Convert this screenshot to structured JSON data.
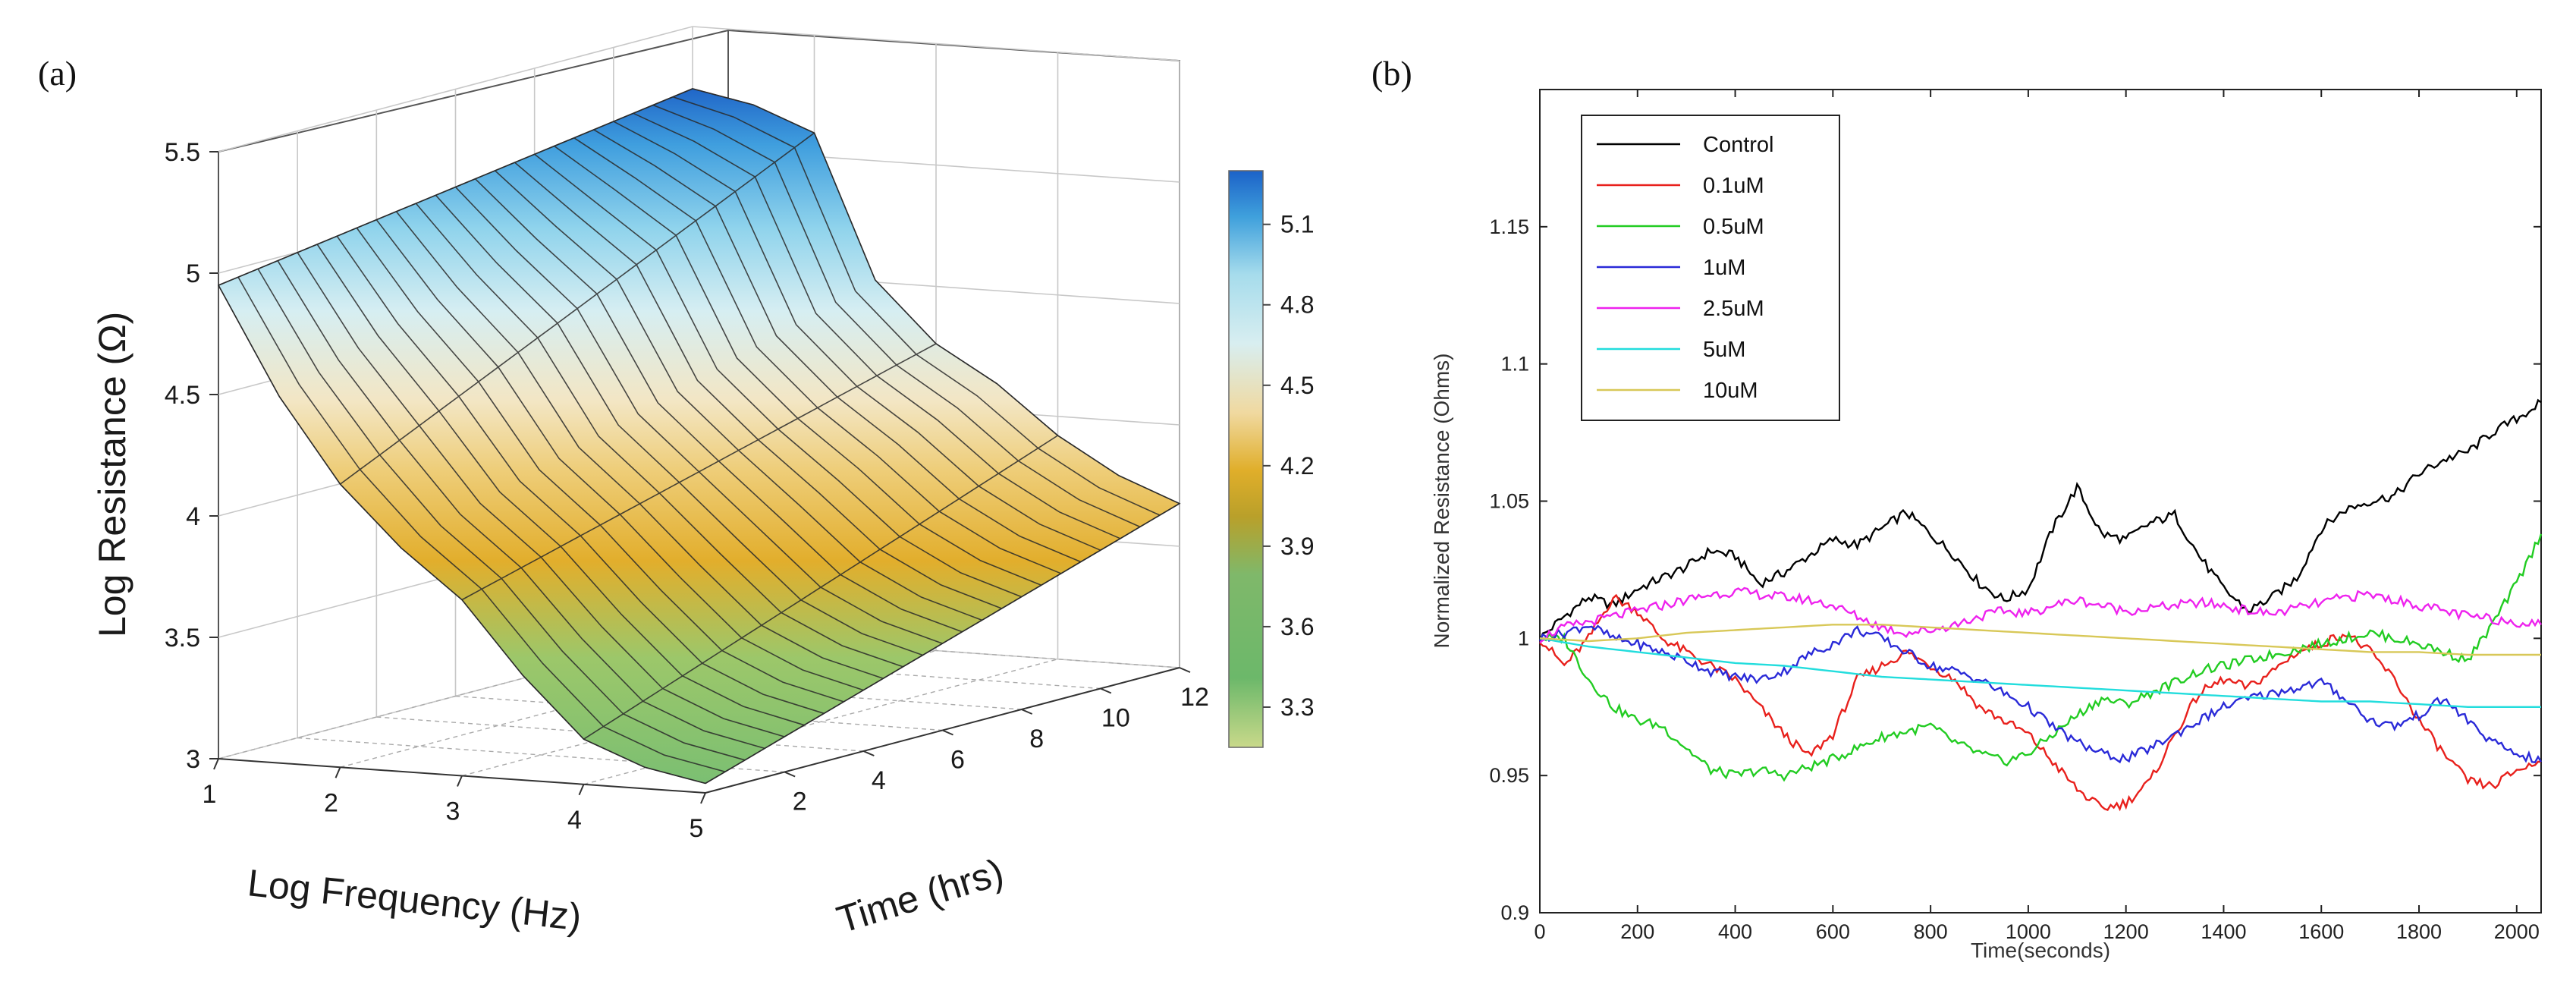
{
  "figure": {
    "panel_a_label": "(a)",
    "panel_b_label": "(b)"
  },
  "chart_data": [
    {
      "type": "surface3d",
      "panel": "(a)",
      "title": "",
      "zlabel": "Log Resistance (Ω)",
      "xlabel": "Log Frequency (Hz)",
      "ylabel": "Time (hrs)",
      "x_ticks": [
        "1",
        "2",
        "3",
        "4",
        "5"
      ],
      "y_ticks": [
        "2",
        "4",
        "6",
        "8",
        "10",
        "12"
      ],
      "z_ticks": [
        "3",
        "3.5",
        "4",
        "4.5",
        "5",
        "5.5"
      ],
      "xlim": [
        1,
        5
      ],
      "ylim": [
        0,
        12
      ],
      "zlim": [
        3,
        5.5
      ],
      "colorbar_ticks": [
        "3.3",
        "3.6",
        "3.9",
        "4.2",
        "4.5",
        "4.8",
        "5.1"
      ],
      "colorbar_range": [
        3.15,
        5.3
      ],
      "colorbar_colors": [
        "#c9d98a",
        "#6cb86a",
        "#7fb86a",
        "#e0ae2a",
        "#f0d9a0",
        "#d8eef0",
        "#a6dcec",
        "#3fa0dc",
        "#1c62c8"
      ],
      "surface_profile": {
        "log_frequency": [
          1,
          1.5,
          2,
          2.5,
          3,
          3.5,
          4,
          4.5,
          5
        ],
        "z_at_time_0": [
          5.0,
          4.55,
          4.2,
          3.95,
          3.75,
          3.45,
          3.2,
          3.1,
          3.05
        ],
        "z_at_time_12": [
          5.3,
          5.25,
          5.15,
          4.55,
          4.3,
          4.15,
          3.95,
          3.8,
          3.7
        ]
      }
    },
    {
      "type": "line",
      "panel": "(b)",
      "title": "",
      "xlabel": "Time(seconds)",
      "ylabel": "Normalized Resistance (Ohms)",
      "xlim": [
        0,
        2050
      ],
      "ylim": [
        0.9,
        1.2
      ],
      "x_ticks": [
        "0",
        "200",
        "400",
        "600",
        "800",
        "1000",
        "1200",
        "1400",
        "1600",
        "1800",
        "2000"
      ],
      "y_ticks": [
        "0.9",
        "0.95",
        "1",
        "1.05",
        "1.1",
        "1.15"
      ],
      "legend_position": "top-left",
      "series": [
        {
          "name": "Control",
          "color": "#000000",
          "x": [
            0,
            50,
            100,
            150,
            200,
            250,
            300,
            350,
            400,
            450,
            500,
            550,
            600,
            650,
            700,
            750,
            800,
            850,
            900,
            950,
            1000,
            1050,
            1100,
            1150,
            1200,
            1250,
            1300,
            1350,
            1400,
            1450,
            1500,
            1550,
            1600,
            1650,
            1700,
            1750,
            1800,
            1850,
            1900,
            1950,
            2000,
            2050
          ],
          "y": [
            1.0,
            1.008,
            1.015,
            1.012,
            1.018,
            1.022,
            1.026,
            1.032,
            1.03,
            1.02,
            1.024,
            1.03,
            1.036,
            1.034,
            1.04,
            1.046,
            1.038,
            1.03,
            1.02,
            1.014,
            1.018,
            1.04,
            1.055,
            1.038,
            1.036,
            1.042,
            1.045,
            1.03,
            1.018,
            1.01,
            1.015,
            1.022,
            1.04,
            1.047,
            1.05,
            1.052,
            1.06,
            1.065,
            1.068,
            1.075,
            1.08,
            1.086
          ]
        },
        {
          "name": "0.1uM",
          "color": "#e8201c",
          "x": [
            0,
            50,
            100,
            150,
            200,
            250,
            300,
            350,
            400,
            450,
            500,
            550,
            600,
            650,
            700,
            750,
            800,
            850,
            900,
            950,
            1000,
            1050,
            1100,
            1150,
            1200,
            1250,
            1300,
            1350,
            1400,
            1450,
            1500,
            1550,
            1600,
            1650,
            1700,
            1750,
            1800,
            1850,
            1900,
            1950,
            2000,
            2050
          ],
          "y": [
            1.0,
            0.99,
            1.0,
            1.015,
            1.01,
            1.0,
            0.995,
            0.99,
            0.985,
            0.975,
            0.965,
            0.957,
            0.965,
            0.985,
            0.99,
            0.995,
            0.99,
            0.985,
            0.975,
            0.97,
            0.965,
            0.955,
            0.945,
            0.938,
            0.94,
            0.948,
            0.965,
            0.98,
            0.985,
            0.982,
            0.988,
            0.995,
            0.998,
            1.002,
            0.995,
            0.985,
            0.97,
            0.958,
            0.948,
            0.946,
            0.952,
            0.955
          ]
        },
        {
          "name": "0.5uM",
          "color": "#22cc22",
          "x": [
            0,
            50,
            100,
            150,
            200,
            250,
            300,
            350,
            400,
            450,
            500,
            550,
            600,
            650,
            700,
            750,
            800,
            850,
            900,
            950,
            1000,
            1050,
            1100,
            1150,
            1200,
            1250,
            1300,
            1350,
            1400,
            1450,
            1500,
            1550,
            1600,
            1650,
            1700,
            1750,
            1800,
            1850,
            1900,
            1950,
            2000,
            2050
          ],
          "y": [
            1.0,
            1.0,
            0.985,
            0.975,
            0.97,
            0.968,
            0.96,
            0.952,
            0.95,
            0.952,
            0.95,
            0.953,
            0.956,
            0.96,
            0.964,
            0.966,
            0.968,
            0.962,
            0.958,
            0.955,
            0.958,
            0.965,
            0.972,
            0.978,
            0.976,
            0.98,
            0.984,
            0.988,
            0.99,
            0.992,
            0.994,
            0.996,
            0.998,
            1.0,
            1.002,
            1.0,
            0.998,
            0.995,
            0.992,
            1.005,
            1.02,
            1.038
          ]
        },
        {
          "name": "1uM",
          "color": "#2a2ad8",
          "x": [
            0,
            50,
            100,
            150,
            200,
            250,
            300,
            350,
            400,
            450,
            500,
            550,
            600,
            650,
            700,
            750,
            800,
            850,
            900,
            950,
            1000,
            1050,
            1100,
            1150,
            1200,
            1250,
            1300,
            1350,
            1400,
            1450,
            1500,
            1550,
            1600,
            1650,
            1700,
            1750,
            1800,
            1850,
            1900,
            1950,
            2000,
            2050
          ],
          "y": [
            1.0,
            1.002,
            1.005,
            1.0,
            0.998,
            0.995,
            0.992,
            0.988,
            0.986,
            0.985,
            0.988,
            0.994,
            0.998,
            1.003,
            1.0,
            0.995,
            0.99,
            0.988,
            0.985,
            0.98,
            0.975,
            0.968,
            0.962,
            0.958,
            0.956,
            0.96,
            0.965,
            0.97,
            0.975,
            0.978,
            0.98,
            0.982,
            0.984,
            0.978,
            0.97,
            0.968,
            0.972,
            0.978,
            0.97,
            0.962,
            0.958,
            0.955
          ]
        },
        {
          "name": "2.5uM",
          "color": "#ee22ee",
          "x": [
            0,
            50,
            100,
            150,
            200,
            250,
            300,
            350,
            400,
            450,
            500,
            550,
            600,
            650,
            700,
            750,
            800,
            850,
            900,
            950,
            1000,
            1050,
            1100,
            1150,
            1200,
            1250,
            1300,
            1350,
            1400,
            1450,
            1500,
            1550,
            1600,
            1650,
            1700,
            1750,
            1800,
            1850,
            1900,
            1950,
            2000,
            2050
          ],
          "y": [
            1.0,
            1.004,
            1.006,
            1.008,
            1.01,
            1.012,
            1.014,
            1.016,
            1.017,
            1.016,
            1.015,
            1.014,
            1.012,
            1.008,
            1.004,
            1.002,
            1.003,
            1.005,
            1.008,
            1.01,
            1.009,
            1.012,
            1.014,
            1.012,
            1.01,
            1.011,
            1.012,
            1.013,
            1.012,
            1.01,
            1.009,
            1.011,
            1.013,
            1.015,
            1.016,
            1.014,
            1.012,
            1.01,
            1.008,
            1.007,
            1.006,
            1.005
          ]
        },
        {
          "name": "5uM",
          "color": "#22dddd",
          "x": [
            0,
            100,
            200,
            300,
            400,
            500,
            600,
            700,
            800,
            900,
            1000,
            1100,
            1200,
            1300,
            1400,
            1500,
            1600,
            1700,
            1800,
            1900,
            2000,
            2050
          ],
          "y": [
            1.0,
            0.997,
            0.995,
            0.993,
            0.991,
            0.99,
            0.988,
            0.986,
            0.985,
            0.984,
            0.983,
            0.982,
            0.981,
            0.98,
            0.979,
            0.978,
            0.977,
            0.977,
            0.976,
            0.975,
            0.975,
            0.975
          ]
        },
        {
          "name": "10uM",
          "color": "#d8c858",
          "x": [
            0,
            100,
            200,
            300,
            400,
            500,
            600,
            700,
            800,
            900,
            1000,
            1100,
            1200,
            1300,
            1400,
            1500,
            1600,
            1700,
            1800,
            1900,
            2000,
            2050
          ],
          "y": [
            1.0,
            0.999,
            1.0,
            1.002,
            1.003,
            1.004,
            1.005,
            1.005,
            1.004,
            1.003,
            1.002,
            1.001,
            1.0,
            0.999,
            0.998,
            0.997,
            0.996,
            0.995,
            0.995,
            0.994,
            0.994,
            0.994
          ]
        }
      ]
    }
  ]
}
